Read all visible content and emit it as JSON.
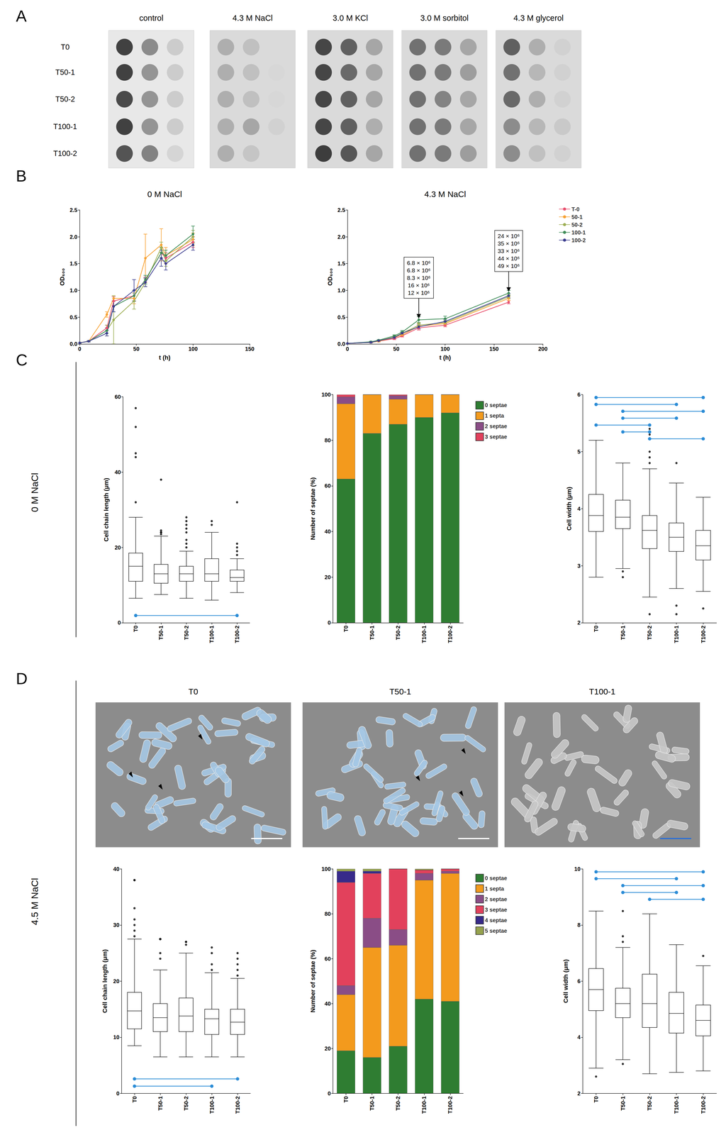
{
  "panel_labels": [
    "A",
    "B",
    "C",
    "D"
  ],
  "row_labels": [
    "0 M NaCl",
    "4.5 M NaCl"
  ],
  "spot_assay": {
    "conditions": [
      "control",
      "4.3 M NaCl",
      "3.0 M KCl",
      "3.0 M sorbitol",
      "4.3 M glycerol"
    ],
    "strains": [
      "T0",
      "T50-1",
      "T50-2",
      "T100-1",
      "T100-2"
    ],
    "growth": [
      [
        [
          0.9,
          0.5,
          0.15
        ],
        [
          0.9,
          0.45,
          0.15
        ],
        [
          0.85,
          0.45,
          0.15
        ],
        [
          0.9,
          0.45,
          0.15
        ],
        [
          0.8,
          0.55,
          0.1
        ]
      ],
      [
        [
          0.25,
          0.15,
          0.0
        ],
        [
          0.25,
          0.15,
          0.02
        ],
        [
          0.25,
          0.15,
          0.02
        ],
        [
          0.25,
          0.3,
          0.05
        ],
        [
          0.25,
          0.12,
          0.0
        ]
      ],
      [
        [
          0.85,
          0.7,
          0.3
        ],
        [
          0.85,
          0.65,
          0.3
        ],
        [
          0.85,
          0.7,
          0.3
        ],
        [
          0.85,
          0.7,
          0.25
        ],
        [
          0.9,
          0.75,
          0.3
        ]
      ],
      [
        [
          0.6,
          0.55,
          0.3
        ],
        [
          0.6,
          0.55,
          0.35
        ],
        [
          0.6,
          0.5,
          0.3
        ],
        [
          0.6,
          0.55,
          0.3
        ],
        [
          0.6,
          0.55,
          0.35
        ]
      ],
      [
        [
          0.7,
          0.25,
          0.05
        ],
        [
          0.6,
          0.2,
          0.05
        ],
        [
          0.65,
          0.25,
          0.05
        ],
        [
          0.45,
          0.2,
          0.1
        ],
        [
          0.45,
          0.15,
          0.05
        ]
      ]
    ]
  },
  "micrographs": {
    "titles": [
      "T0",
      "T50-1",
      "T100-1"
    ]
  },
  "chart_data": [
    {
      "type": "line",
      "title": "0 M NaCl",
      "xlabel": "t (h)",
      "ylabel": "OD₆₀₀",
      "marker": "circle",
      "grid": false,
      "x": [
        0,
        8,
        24,
        30,
        48,
        58,
        72,
        76,
        100
      ],
      "series": [
        {
          "name": "T-0",
          "color": "#e8506e",
          "values": [
            0.02,
            0.05,
            0.3,
            0.8,
            0.9,
            1.2,
            1.7,
            1.6,
            1.9
          ],
          "errors": [
            0.01,
            0.01,
            0.05,
            0.08,
            0.1,
            0.05,
            0.1,
            0.1,
            0.1
          ]
        },
        {
          "name": "50-1",
          "color": "#f7a234",
          "values": [
            0.02,
            0.05,
            0.55,
            0.85,
            0.85,
            1.6,
            1.85,
            1.65,
            1.95
          ],
          "errors": [
            0.01,
            0.01,
            0.05,
            0.05,
            0.1,
            0.45,
            0.3,
            0.15,
            0.12
          ]
        },
        {
          "name": "50-2",
          "color": "#9cae52",
          "values": [
            0.02,
            0.05,
            0.25,
            0.45,
            0.8,
            1.15,
            1.8,
            1.55,
            2.0
          ],
          "errors": [
            0.01,
            0.01,
            0.1,
            0.45,
            0.15,
            0.08,
            0.1,
            0.1,
            0.12
          ]
        },
        {
          "name": "100-1",
          "color": "#3d8c57",
          "values": [
            0.02,
            0.05,
            0.25,
            0.7,
            0.9,
            1.2,
            1.7,
            1.65,
            2.05
          ],
          "errors": [
            0.01,
            0.01,
            0.05,
            0.1,
            0.1,
            0.08,
            0.1,
            0.1,
            0.15
          ]
        },
        {
          "name": "100-2",
          "color": "#3b3c8e",
          "values": [
            0.02,
            0.05,
            0.2,
            0.7,
            1.0,
            1.15,
            1.6,
            1.5,
            1.85
          ],
          "errors": [
            0.01,
            0.01,
            0.05,
            0.1,
            0.2,
            0.08,
            0.15,
            0.12,
            0.1
          ]
        }
      ],
      "xlim": [
        0,
        150
      ],
      "xticks": [
        0,
        50,
        100,
        150
      ],
      "ylim": [
        0,
        2.5
      ],
      "yticks": [
        {
          "value": 0,
          "label": "0.0"
        },
        {
          "value": 0.5,
          "label": "0.5"
        },
        {
          "value": 1,
          "label": "1.0"
        },
        {
          "value": 1.5,
          "label": "1.5"
        },
        {
          "value": 2,
          "label": "2.0"
        },
        {
          "value": 2.5,
          "label": "2.5"
        }
      ]
    },
    {
      "type": "line",
      "title": "4.3 M NaCl",
      "xlabel": "t (h)",
      "ylabel": "OD₆₀₀",
      "marker": "circle",
      "grid": false,
      "legend": "right",
      "x": [
        0,
        24,
        32,
        48,
        56,
        73,
        100,
        165
      ],
      "series": [
        {
          "name": "T-0",
          "color": "#e8506e",
          "values": [
            0.01,
            0.03,
            0.05,
            0.1,
            0.15,
            0.3,
            0.35,
            0.78
          ],
          "errors": [
            0.005,
            0.01,
            0.01,
            0.02,
            0.02,
            0.04,
            0.03,
            0.03
          ]
        },
        {
          "name": "50-1",
          "color": "#f7a234",
          "values": [
            0.01,
            0.03,
            0.05,
            0.12,
            0.17,
            0.33,
            0.38,
            0.85
          ],
          "errors": [
            0.005,
            0.01,
            0.01,
            0.02,
            0.02,
            0.05,
            0.04,
            0.04
          ]
        },
        {
          "name": "50-2",
          "color": "#9cae52",
          "values": [
            0.01,
            0.03,
            0.06,
            0.13,
            0.2,
            0.35,
            0.4,
            0.88
          ],
          "errors": [
            0.005,
            0.01,
            0.01,
            0.02,
            0.03,
            0.05,
            0.04,
            0.04
          ]
        },
        {
          "name": "100-1",
          "color": "#3d8c57",
          "values": [
            0.01,
            0.04,
            0.07,
            0.15,
            0.22,
            0.45,
            0.47,
            0.95
          ],
          "errors": [
            0.005,
            0.01,
            0.01,
            0.02,
            0.03,
            0.06,
            0.05,
            0.05
          ]
        },
        {
          "name": "100-2",
          "color": "#3b3c8e",
          "values": [
            0.01,
            0.03,
            0.06,
            0.12,
            0.2,
            0.32,
            0.42,
            0.9
          ],
          "errors": [
            0.005,
            0.01,
            0.01,
            0.02,
            0.02,
            0.04,
            0.04,
            0.04
          ]
        }
      ],
      "annotations": [
        {
          "x": 73,
          "lines": [
            "6.8 × 10⁶",
            "6.8 × 10⁶",
            "8.3 × 10⁶",
            "16 × 10⁶",
            "12 × 10⁶"
          ]
        },
        {
          "x": 165,
          "lines": [
            "24 × 10⁶",
            "35 × 10⁶",
            "33 × 10⁶",
            "44 × 10⁶",
            "49 × 10⁶"
          ]
        }
      ],
      "xlim": [
        0,
        200
      ],
      "xticks": [
        0,
        50,
        100,
        150,
        200
      ],
      "ylim": [
        0,
        2.5
      ],
      "yticks": [
        {
          "value": 0,
          "label": "0.0"
        },
        {
          "value": 0.5,
          "label": "0.5"
        },
        {
          "value": 1,
          "label": "1.0"
        },
        {
          "value": 1.5,
          "label": "1.5"
        },
        {
          "value": 2,
          "label": "2.0"
        },
        {
          "value": 2.5,
          "label": "2.5"
        }
      ]
    },
    {
      "type": "boxplot",
      "ylabel": "Cell chain length (μm)",
      "grid": false,
      "categories": [
        "T0",
        "T50-1",
        "T50-2",
        "T100-1",
        "T100-2"
      ],
      "values": [
        [
          6.5,
          11,
          15,
          18.5,
          28
        ],
        [
          7.5,
          10.5,
          13,
          15.5,
          23
        ],
        [
          6.5,
          11,
          13,
          15,
          19
        ],
        [
          6,
          11,
          13,
          17,
          24
        ],
        [
          8,
          11,
          12,
          14,
          17
        ]
      ],
      "outliers": [
        [
          32,
          44,
          45,
          52,
          57
        ],
        [
          24,
          24,
          23.5,
          24.5,
          38
        ],
        [
          20,
          21,
          22,
          24,
          25,
          26,
          27,
          28
        ],
        [
          26,
          27
        ],
        [
          18,
          19,
          20,
          21,
          32
        ]
      ],
      "significance": [
        [
          "T0",
          "T100-2"
        ]
      ],
      "ylim": [
        0,
        60
      ],
      "yticks": [
        0,
        20,
        40,
        60
      ]
    },
    {
      "type": "bar",
      "stacked": true,
      "ylabel": "Number of septae (%)",
      "grid": false,
      "legend": "right",
      "categories": [
        "T0",
        "T50-1",
        "T50-2",
        "T100-1",
        "T100-2"
      ],
      "series": [
        {
          "name": "0 septae",
          "color": "#2f7d32",
          "values": [
            63,
            83,
            87,
            90,
            92
          ]
        },
        {
          "name": "1 septa",
          "color": "#f39a1d",
          "values": [
            33,
            17,
            11,
            10,
            8
          ]
        },
        {
          "name": "2 septae",
          "color": "#8a4d86",
          "values": [
            3,
            0,
            1.5,
            0,
            0
          ]
        },
        {
          "name": "3 septae",
          "color": "#e2415c",
          "values": [
            1,
            0,
            0.5,
            0,
            0
          ]
        }
      ],
      "ylim": [
        0,
        100
      ],
      "yticks": [
        0,
        20,
        40,
        60,
        80,
        100
      ]
    },
    {
      "type": "boxplot",
      "ylabel": "Cell width (μm)",
      "grid": false,
      "categories": [
        "T0",
        "T50-1",
        "T50-2",
        "T100-1",
        "T100-2"
      ],
      "values": [
        [
          2.8,
          3.6,
          3.88,
          4.25,
          5.2
        ],
        [
          2.95,
          3.65,
          3.85,
          4.15,
          4.8
        ],
        [
          2.45,
          3.3,
          3.62,
          3.88,
          4.7
        ],
        [
          2.6,
          3.25,
          3.5,
          3.75,
          4.45
        ],
        [
          2.55,
          3.1,
          3.35,
          3.62,
          4.2
        ]
      ],
      "outliers": [
        [],
        [
          2.8,
          2.9
        ],
        [
          2.15,
          4.8,
          4.9,
          5.0,
          5.3,
          5.4
        ],
        [
          2.15,
          2.3,
          4.8
        ],
        [
          2.25
        ]
      ],
      "significance": [
        [
          "T0",
          "T100-2"
        ],
        [
          "T0",
          "T100-1"
        ],
        [
          "T50-1",
          "T100-2"
        ],
        [
          "T50-1",
          "T100-1"
        ],
        [
          "T0",
          "T50-2"
        ],
        [
          "T50-1",
          "T50-2"
        ],
        [
          "T50-2",
          "T100-2"
        ]
      ],
      "ylim": [
        2,
        6
      ],
      "yticks": [
        2,
        3,
        4,
        5,
        6
      ]
    },
    {
      "type": "boxplot",
      "ylabel": "Cell chain length (μm)",
      "grid": false,
      "categories": [
        "T0",
        "T50-1",
        "T50-2",
        "T100-1",
        "T100-2"
      ],
      "values": [
        [
          8.5,
          11.5,
          14.7,
          18,
          27.5
        ],
        [
          6.5,
          11,
          13.5,
          16,
          22
        ],
        [
          6.5,
          11,
          13.8,
          17,
          25
        ],
        [
          6.5,
          10.5,
          13.3,
          15,
          21.5
        ],
        [
          6.5,
          10.5,
          12.7,
          15,
          20.5
        ]
      ],
      "outliers": [
        [
          28,
          29,
          30,
          31,
          33,
          38,
          38
        ],
        [
          24,
          25,
          27.5,
          27.5,
          27.5,
          27.5
        ],
        [
          26.5,
          27,
          27
        ],
        [
          22,
          23,
          25,
          26
        ],
        [
          21,
          22,
          23,
          24,
          25
        ]
      ],
      "significance": [
        [
          "T0",
          "T100-2"
        ],
        [
          "T0",
          "T100-1"
        ]
      ],
      "ylim": [
        0,
        40
      ],
      "yticks": [
        0,
        10,
        20,
        30,
        40
      ]
    },
    {
      "type": "bar",
      "stacked": true,
      "ylabel": "Number of septae (%)",
      "grid": false,
      "legend": "right",
      "categories": [
        "T0",
        "T50-1",
        "T50-2",
        "T100-1",
        "T100-2"
      ],
      "series": [
        {
          "name": "0 septae",
          "color": "#2f7d32",
          "values": [
            19,
            16,
            21,
            42,
            41
          ]
        },
        {
          "name": "1 septa",
          "color": "#f39a1d",
          "values": [
            25,
            49,
            45,
            53,
            57
          ]
        },
        {
          "name": "2 septae",
          "color": "#8a4d86",
          "values": [
            4,
            13,
            7,
            3,
            1
          ]
        },
        {
          "name": "3 septae",
          "color": "#e2415c",
          "values": [
            46,
            20,
            27,
            1.5,
            1
          ]
        },
        {
          "name": "4 septae",
          "color": "#372a8a",
          "values": [
            5,
            1,
            0,
            0,
            0
          ]
        },
        {
          "name": "5 septae",
          "color": "#96a24e",
          "values": [
            1,
            1,
            0,
            0.5,
            0
          ]
        }
      ],
      "ylim": [
        0,
        100
      ],
      "yticks": [
        0,
        20,
        40,
        60,
        80,
        100
      ]
    },
    {
      "type": "boxplot",
      "ylabel": "Cell width (μm)",
      "grid": false,
      "categories": [
        "T0",
        "T50-1",
        "T50-2",
        "T100-1",
        "T100-2"
      ],
      "values": [
        [
          2.9,
          4.95,
          5.7,
          6.45,
          8.5
        ],
        [
          3.2,
          4.7,
          5.2,
          5.75,
          7.2
        ],
        [
          2.7,
          4.35,
          5.2,
          6.25,
          8.4
        ],
        [
          2.75,
          4.15,
          4.85,
          5.6,
          7.3
        ],
        [
          2.8,
          4.05,
          4.6,
          5.15,
          6.55
        ]
      ],
      "outliers": [
        [
          2.6
        ],
        [
          3.05,
          7.4,
          7.6,
          8.5
        ],
        [],
        [],
        [
          6.9
        ]
      ],
      "significance": [
        [
          "T0",
          "T100-2"
        ],
        [
          "T0",
          "T100-1"
        ],
        [
          "T50-1",
          "T100-2"
        ],
        [
          "T50-1",
          "T100-1"
        ],
        [
          "T50-2",
          "T100-2"
        ]
      ],
      "ylim": [
        2,
        10
      ],
      "yticks": [
        2,
        4,
        6,
        8,
        10
      ]
    }
  ]
}
